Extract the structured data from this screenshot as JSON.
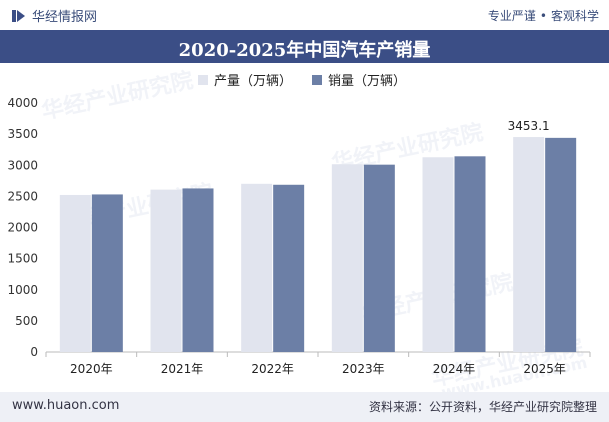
{
  "header": {
    "brand": "华经情报网",
    "slogan_left": "专业严谨",
    "slogan_sep": "•",
    "slogan_right": "客观科学"
  },
  "title": "2020-2025年中国汽车产销量",
  "legend": [
    {
      "label": "产量（万辆）",
      "color": "#e1e4ee"
    },
    {
      "label": "销量（万辆）",
      "color": "#6c7fa6"
    }
  ],
  "footer": {
    "website": "www.huaon.com",
    "source": "资料来源：公开资料，华经产业研究院整理"
  },
  "watermarks": [
    "华经产业研究院",
    "华经产业研究院",
    "华经产业研究院",
    "华经产业研究院",
    "华经产业研究院",
    "www.huaon.com"
  ],
  "chart_data": {
    "type": "bar",
    "categories": [
      "2020年",
      "2021年",
      "2022年",
      "2023年",
      "2024年",
      "2025年"
    ],
    "series": [
      {
        "name": "产量（万辆）",
        "values": [
          2522.5,
          2608.2,
          2702.1,
          3016.1,
          3128.2,
          3453.1
        ],
        "color": "#e1e4ee"
      },
      {
        "name": "销量（万辆）",
        "values": [
          2531.1,
          2627.5,
          2686.4,
          3009.4,
          3143.6,
          3440.0
        ],
        "color": "#6c7fa6"
      }
    ],
    "ylim": [
      0,
      4000
    ],
    "yticks": [
      0,
      500,
      1000,
      1500,
      2000,
      2500,
      3000,
      3500,
      4000
    ],
    "data_labels": [
      {
        "series": 0,
        "index": 5,
        "text": "3453.1"
      }
    ],
    "grid": false,
    "legend_position": "top-center"
  }
}
